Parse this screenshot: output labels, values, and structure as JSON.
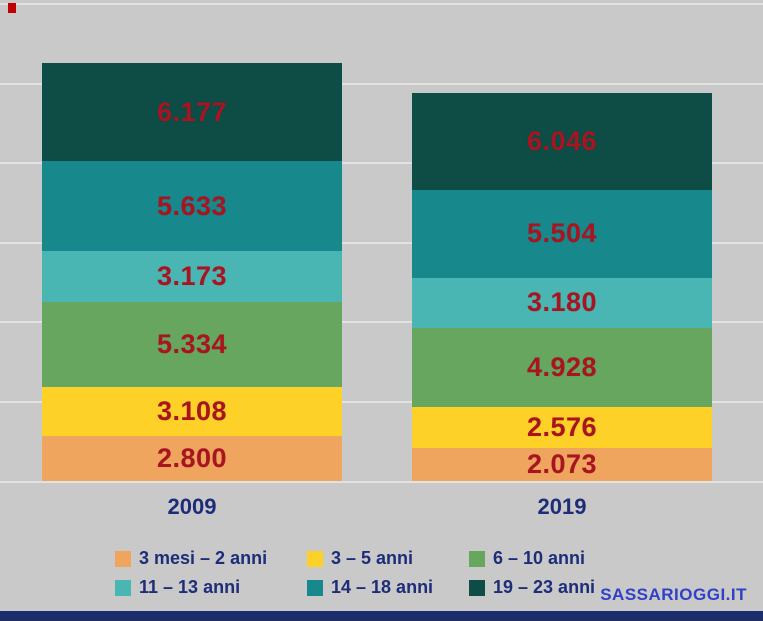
{
  "chart_data": {
    "type": "bar",
    "stacked": true,
    "title": "",
    "categories": [
      "2009",
      "2019"
    ],
    "series": [
      {
        "name": "3 mesi – 2 anni",
        "color": "#efa55e",
        "values": [
          2800,
          2073
        ],
        "labels": [
          "2.800",
          "2.073"
        ]
      },
      {
        "name": "3 – 5 anni",
        "color": "#fdd128",
        "values": [
          3108,
          2576
        ],
        "labels": [
          "3.108",
          "2.576"
        ]
      },
      {
        "name": "6 – 10 anni",
        "color": "#67a65f",
        "values": [
          5334,
          4928
        ],
        "labels": [
          "5.334",
          "4.928"
        ]
      },
      {
        "name": "11 – 13 anni",
        "color": "#4ab6b4",
        "values": [
          3173,
          3180
        ],
        "labels": [
          "3.173",
          "3.180"
        ]
      },
      {
        "name": "14 – 18 anni",
        "color": "#17898c",
        "values": [
          5633,
          5504
        ],
        "labels": [
          "5.633",
          "5.504"
        ]
      },
      {
        "name": "19 – 23 anni",
        "color": "#0d4d46",
        "values": [
          6177,
          6046
        ],
        "labels": [
          "6.177",
          "6.046"
        ]
      }
    ],
    "totals": [
      26225,
      24307
    ],
    "value_label_color": "#a91420",
    "category_label_color": "#1e2d78",
    "gridline_step": 5000,
    "ylim": [
      0,
      30000
    ],
    "grid": true,
    "legend_position": "bottom"
  },
  "watermark": "SASSARIOGGI.IT"
}
